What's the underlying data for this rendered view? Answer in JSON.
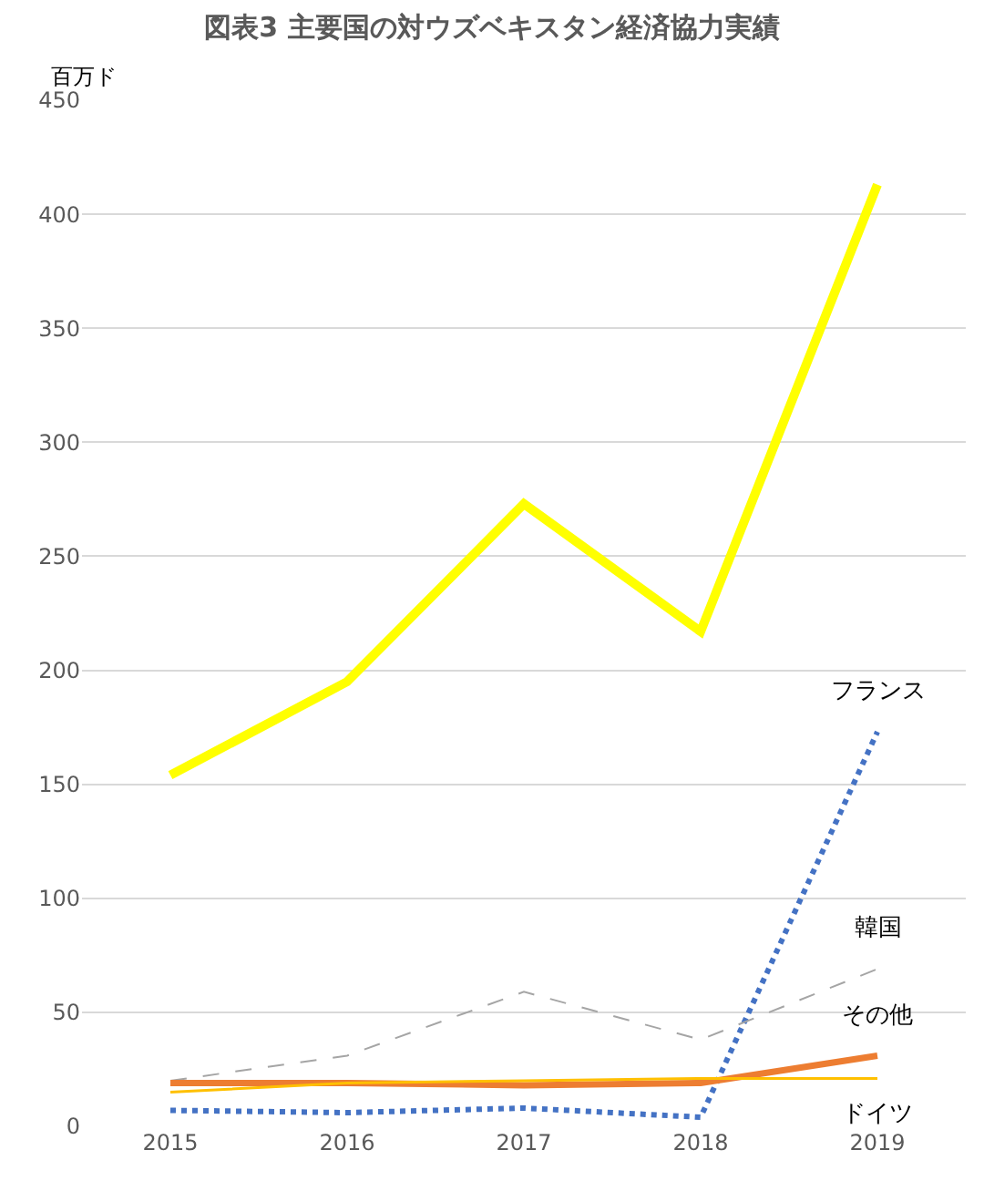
{
  "chart_data": {
    "type": "line",
    "title": "図表3 主要国の対ウズベキスタン経済協力実績",
    "ylabel": "百万ド",
    "categories": [
      "2015",
      "2016",
      "2017",
      "2018",
      "2019"
    ],
    "series": [
      {
        "color": "#ffff00",
        "values": [
          154,
          195,
          273,
          217,
          413
        ],
        "line_style": "solid"
      },
      {
        "name": "フランス",
        "color": "#4472c4",
        "values": [
          7,
          6,
          8,
          4,
          173
        ],
        "line_style": "dotted"
      },
      {
        "name": "韓国",
        "color": "#a5a5a5",
        "values": [
          20,
          31,
          59,
          38,
          69
        ],
        "line_style": "dashed"
      },
      {
        "name": "その他",
        "color": "#ed7d31",
        "values": [
          19,
          19,
          18,
          19,
          31
        ],
        "line_style": "solid"
      },
      {
        "name": "ドイツ",
        "color": "#ffc000",
        "values": [
          15,
          19,
          20,
          21,
          21
        ],
        "line_style": "solid"
      }
    ],
    "ylim": [
      0,
      450
    ],
    "yticks": [
      0,
      50,
      100,
      150,
      200,
      250,
      300,
      350,
      400,
      450
    ],
    "grid": "y",
    "legend": false,
    "marker": "none"
  }
}
